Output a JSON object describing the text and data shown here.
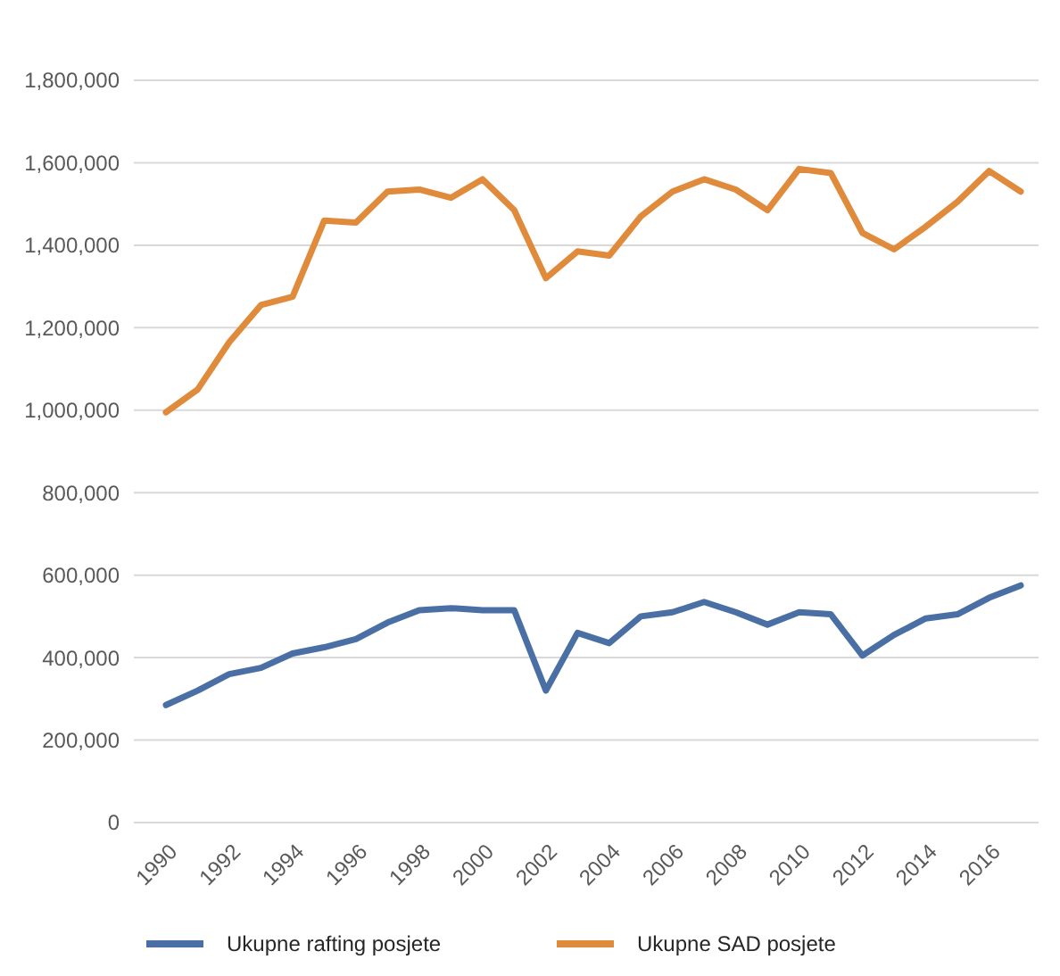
{
  "chart_data": {
    "type": "line",
    "categories": [
      "1990",
      null,
      "1992",
      null,
      "1994",
      null,
      "1996",
      null,
      "1998",
      null,
      "2000",
      null,
      "2002",
      null,
      "2004",
      null,
      "2006",
      null,
      "2008",
      null,
      "2010",
      null,
      "2012",
      null,
      "2014",
      null,
      "2016",
      null
    ],
    "series": [
      {
        "name": "Ukupne rafting posjete",
        "color": "#4a6fa5",
        "values": [
          285000,
          320000,
          360000,
          375000,
          410000,
          425000,
          445000,
          485000,
          515000,
          520000,
          515000,
          515000,
          320000,
          460000,
          435000,
          500000,
          510000,
          535000,
          510000,
          480000,
          510000,
          505000,
          405000,
          455000,
          495000,
          505000,
          545000,
          575000
        ]
      },
      {
        "name": "Ukupne SAD posjete",
        "color": "#e08a3c",
        "values": [
          995000,
          1050000,
          1165000,
          1255000,
          1275000,
          1460000,
          1455000,
          1530000,
          1535000,
          1515000,
          1560000,
          1485000,
          1320000,
          1385000,
          1375000,
          1470000,
          1530000,
          1560000,
          1535000,
          1485000,
          1585000,
          1575000,
          1430000,
          1390000,
          1445000,
          1505000,
          1580000,
          1530000
        ]
      }
    ],
    "ylim": [
      0,
      1800000
    ],
    "yticks": [
      {
        "value": 0,
        "label": "0"
      },
      {
        "value": 200000,
        "label": "200,000"
      },
      {
        "value": 400000,
        "label": "400,000"
      },
      {
        "value": 600000,
        "label": "600,000"
      },
      {
        "value": 800000,
        "label": "800,000"
      },
      {
        "value": 1000000,
        "label": "1,000,000"
      },
      {
        "value": 1200000,
        "label": "1,200,000"
      },
      {
        "value": 1400000,
        "label": "1,400,000"
      },
      {
        "value": 1600000,
        "label": "1,600,000"
      },
      {
        "value": 1800000,
        "label": "1,800,000"
      }
    ],
    "grid": "y",
    "legend": "bottom",
    "marker": "none",
    "line_style": "solid"
  }
}
